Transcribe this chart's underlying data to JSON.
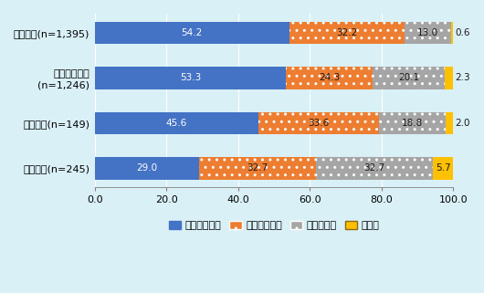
{
  "categories": [
    "輸出企業(n=1,395)",
    "海外進出企業\n(n=1,246)",
    "輸入企業(n=149)",
    "国内企業(n=245)"
  ],
  "series": {
    "不足感がある": [
      54.2,
      53.3,
      45.6,
      29.0
    ],
    "不足感はない": [
      32.2,
      24.3,
      33.6,
      32.7
    ],
    "わからない": [
      13.0,
      20.1,
      18.8,
      32.7
    ],
    "無回答": [
      0.6,
      2.3,
      2.0,
      5.7
    ]
  },
  "colors": {
    "不足感がある": "#4472C4",
    "不足感はない": "#ED7D31",
    "わからない": "#A5A5A5",
    "無回答": "#FFC000"
  },
  "hatch_patterns": {
    "不足感がある": "",
    "不足感はない": "..",
    "わからない": "..",
    "無回答": "==="
  },
  "hatch_colors": {
    "不足感がある": "#4472C4",
    "不足感はない": "white",
    "わからない": "white",
    "無回答": "#8B6914"
  },
  "text_colors": {
    "不足感がある": "white",
    "不足感はない": "#1a1a1a",
    "わからない": "#1a1a1a",
    "無回答": "#1a1a1a"
  },
  "xlim": [
    0,
    100
  ],
  "xticks": [
    0.0,
    20.0,
    40.0,
    60.0,
    80.0,
    100.0
  ],
  "background_color": "#DAF0F7",
  "bar_height": 0.5,
  "fontsize_bar_labels": 7.5,
  "fontsize_ticks": 8,
  "fontsize_legend": 8,
  "fontsize_yticks": 8
}
